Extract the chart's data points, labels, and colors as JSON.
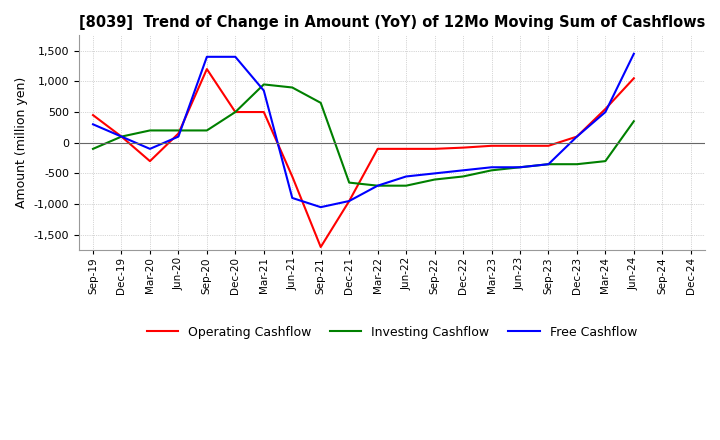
{
  "title": "[8039]  Trend of Change in Amount (YoY) of 12Mo Moving Sum of Cashflows",
  "ylabel": "Amount (million yen)",
  "ylim": [
    -1750,
    1750
  ],
  "yticks": [
    -1500,
    -1000,
    -500,
    0,
    500,
    1000,
    1500
  ],
  "x_labels": [
    "Sep-19",
    "Dec-19",
    "Mar-20",
    "Jun-20",
    "Sep-20",
    "Dec-20",
    "Mar-21",
    "Jun-21",
    "Sep-21",
    "Dec-21",
    "Mar-22",
    "Jun-22",
    "Sep-22",
    "Dec-22",
    "Mar-23",
    "Jun-23",
    "Sep-23",
    "Dec-23",
    "Mar-24",
    "Jun-24",
    "Sep-24",
    "Dec-24"
  ],
  "operating": [
    450,
    100,
    -300,
    150,
    1200,
    500,
    500,
    -550,
    -1700,
    -950,
    -100,
    -100,
    -100,
    -80,
    -50,
    -50,
    -50,
    100,
    550,
    1050,
    null,
    null
  ],
  "investing": [
    -100,
    100,
    200,
    200,
    200,
    500,
    950,
    900,
    650,
    -650,
    -700,
    -700,
    -600,
    -550,
    -450,
    -400,
    -350,
    -350,
    -300,
    350,
    null,
    null
  ],
  "free": [
    300,
    100,
    -100,
    100,
    1400,
    1400,
    850,
    -900,
    -1050,
    -950,
    -700,
    -550,
    -500,
    -450,
    -400,
    -400,
    -350,
    100,
    500,
    1450,
    null,
    null
  ],
  "colors": {
    "operating": "#ff0000",
    "investing": "#008000",
    "free": "#0000ff"
  },
  "legend_labels": [
    "Operating Cashflow",
    "Investing Cashflow",
    "Free Cashflow"
  ],
  "background_color": "#ffffff",
  "grid_color": "#b0b0b0"
}
